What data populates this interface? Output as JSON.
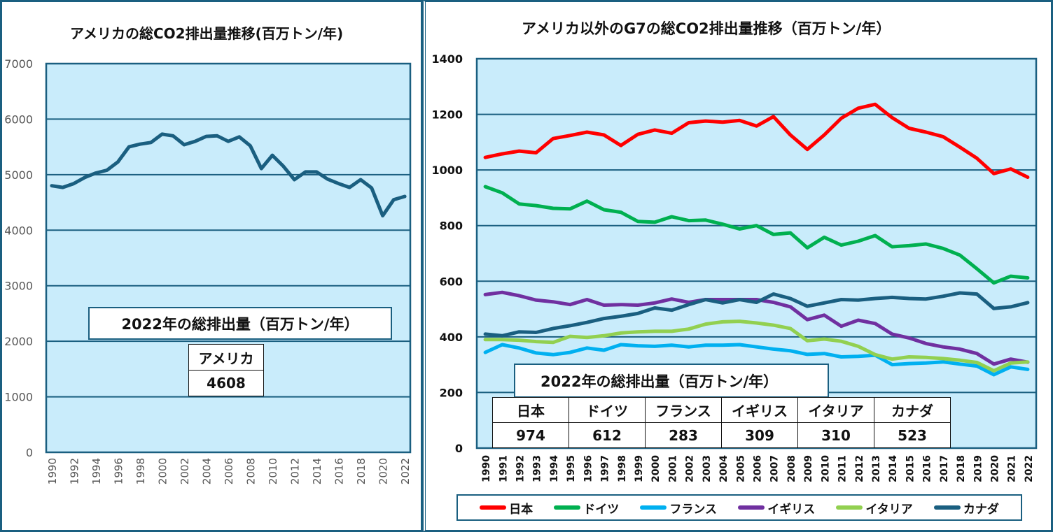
{
  "chart_data": [
    {
      "type": "line",
      "title": "アメリカの総CO2排出量推移(百万トン/年)",
      "xlabel": "",
      "ylabel": "",
      "ylim": [
        0,
        7000
      ],
      "yticks": [
        "0",
        "1000",
        "2000",
        "3000",
        "4000",
        "5000",
        "6000",
        "7000"
      ],
      "xtick_labels": [
        "1990",
        "1992",
        "1994",
        "1996",
        "1998",
        "2000",
        "2002",
        "2004",
        "2006",
        "2008",
        "2010",
        "2012",
        "2014",
        "2016",
        "2018",
        "2020",
        "2022"
      ],
      "grid": true,
      "x": [
        1990,
        1991,
        1992,
        1993,
        1994,
        1995,
        1996,
        1997,
        1998,
        1999,
        2000,
        2001,
        2002,
        2003,
        2004,
        2005,
        2006,
        2007,
        2008,
        2009,
        2010,
        2011,
        2012,
        2013,
        2014,
        2015,
        2016,
        2017,
        2018,
        2019,
        2020,
        2021,
        2022
      ],
      "series": [
        {
          "name": "アメリカ",
          "color": "#1a5f80",
          "values": [
            4800,
            4770,
            4840,
            4950,
            5030,
            5080,
            5230,
            5500,
            5550,
            5580,
            5730,
            5700,
            5540,
            5600,
            5690,
            5700,
            5600,
            5680,
            5520,
            5110,
            5350,
            5150,
            4910,
            5050,
            5050,
            4920,
            4840,
            4770,
            4910,
            4760,
            4260,
            4550,
            4608
          ]
        }
      ],
      "summary": {
        "title": "2022年の総排出量（百万トン/年）",
        "headers": [
          "アメリカ"
        ],
        "values": [
          "4608"
        ]
      }
    },
    {
      "type": "line",
      "title": "アメリカ以外のG7の総CO2排出量推移（百万トン/年）",
      "xlabel": "",
      "ylabel": "",
      "ylim": [
        0,
        1400
      ],
      "yticks": [
        "0",
        "200",
        "400",
        "600",
        "800",
        "1000",
        "1200",
        "1400"
      ],
      "xtick_labels": [
        "1990",
        "1991",
        "1992",
        "1993",
        "1994",
        "1995",
        "1996",
        "1997",
        "1998",
        "1999",
        "2000",
        "2001",
        "2002",
        "2003",
        "2004",
        "2005",
        "2006",
        "2007",
        "2008",
        "2009",
        "2010",
        "2011",
        "2012",
        "2013",
        "2014",
        "2015",
        "2016",
        "2017",
        "2018",
        "2019",
        "2020",
        "2021",
        "2022"
      ],
      "grid": true,
      "legend_position": "bottom",
      "x": [
        1990,
        1991,
        1992,
        1993,
        1994,
        1995,
        1996,
        1997,
        1998,
        1999,
        2000,
        2001,
        2002,
        2003,
        2004,
        2005,
        2006,
        2007,
        2008,
        2009,
        2010,
        2011,
        2012,
        2013,
        2014,
        2015,
        2016,
        2017,
        2018,
        2019,
        2020,
        2021,
        2022
      ],
      "series": [
        {
          "name": "日本",
          "color": "#ff0000",
          "values": [
            1045,
            1058,
            1068,
            1062,
            1113,
            1124,
            1136,
            1126,
            1088,
            1128,
            1144,
            1132,
            1170,
            1176,
            1172,
            1178,
            1158,
            1192,
            1126,
            1074,
            1126,
            1186,
            1222,
            1236,
            1188,
            1150,
            1136,
            1120,
            1082,
            1042,
            987,
            1004,
            974
          ]
        },
        {
          "name": "ドイツ",
          "color": "#00b050",
          "values": [
            940,
            918,
            878,
            872,
            862,
            860,
            888,
            857,
            848,
            815,
            812,
            832,
            818,
            820,
            805,
            788,
            800,
            768,
            774,
            720,
            758,
            730,
            744,
            764,
            724,
            728,
            734,
            718,
            694,
            645,
            594,
            618,
            612
          ]
        },
        {
          "name": "フランス",
          "color": "#00b0f0",
          "values": [
            344,
            372,
            360,
            342,
            336,
            344,
            360,
            352,
            372,
            368,
            366,
            370,
            364,
            370,
            370,
            372,
            364,
            356,
            350,
            337,
            340,
            328,
            330,
            334,
            300,
            304,
            306,
            310,
            302,
            295,
            264,
            292,
            283
          ]
        },
        {
          "name": "イギリス",
          "color": "#7030a0",
          "values": [
            552,
            560,
            548,
            532,
            526,
            516,
            534,
            514,
            516,
            514,
            522,
            536,
            524,
            534,
            534,
            534,
            534,
            524,
            508,
            462,
            478,
            438,
            460,
            448,
            410,
            396,
            376,
            364,
            356,
            340,
            302,
            320,
            309
          ]
        },
        {
          "name": "イタリア",
          "color": "#92d050",
          "values": [
            390,
            390,
            388,
            383,
            380,
            402,
            398,
            404,
            414,
            418,
            420,
            420,
            428,
            446,
            454,
            456,
            450,
            442,
            430,
            386,
            392,
            384,
            366,
            336,
            320,
            328,
            326,
            322,
            316,
            308,
            278,
            306,
            310
          ]
        },
        {
          "name": "カナダ",
          "color": "#1a5f80",
          "values": [
            410,
            404,
            418,
            416,
            430,
            440,
            452,
            466,
            474,
            484,
            504,
            496,
            516,
            534,
            522,
            534,
            524,
            554,
            538,
            510,
            522,
            534,
            532,
            538,
            542,
            538,
            536,
            546,
            558,
            554,
            502,
            508,
            523
          ]
        }
      ],
      "summary": {
        "title": "2022年の総排出量（百万トン/年）",
        "headers": [
          "日本",
          "ドイツ",
          "フランス",
          "イギリス",
          "イタリア",
          "カナダ"
        ],
        "values": [
          "974",
          "612",
          "283",
          "309",
          "310",
          "523"
        ]
      }
    }
  ]
}
